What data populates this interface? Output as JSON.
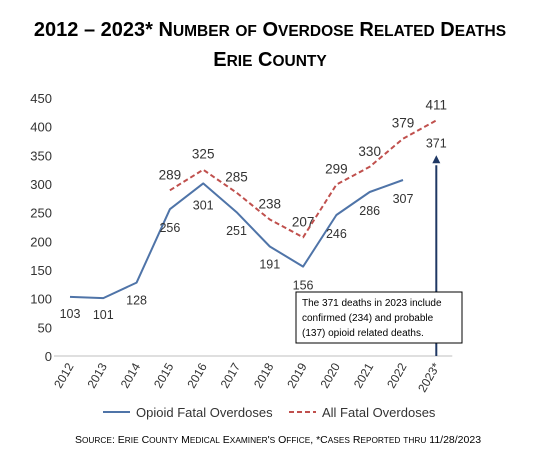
{
  "chart_data": {
    "type": "line",
    "title_line1": "2012 – 2023* Number of Overdose Related Deaths",
    "title_line2": "Erie County",
    "categories": [
      "2012",
      "2013",
      "2014",
      "2015",
      "2016",
      "2017",
      "2018",
      "2019",
      "2020",
      "2021",
      "2022",
      "2023*"
    ],
    "ylim": [
      0,
      450
    ],
    "yticks": [
      0,
      50,
      100,
      150,
      200,
      250,
      300,
      350,
      400,
      450
    ],
    "series": [
      {
        "name": "Opioid Fatal Overdoses",
        "color": "#4f74a8",
        "style": "solid",
        "values": [
          103,
          101,
          128,
          256,
          301,
          251,
          191,
          156,
          246,
          286,
          307,
          null
        ],
        "labels": [
          "103",
          "101",
          "128",
          "256",
          "301",
          "251",
          "191",
          "156",
          "246",
          "286",
          "307",
          "371"
        ]
      },
      {
        "name": "All Fatal Overdoses",
        "color": "#c0504d",
        "style": "dashed",
        "values": [
          null,
          null,
          null,
          289,
          325,
          285,
          238,
          207,
          299,
          330,
          379,
          411
        ],
        "labels": [
          "",
          "",
          "",
          "289",
          "325",
          "285",
          "238",
          "207",
          "299",
          "330",
          "379",
          "411"
        ]
      }
    ],
    "annotation": {
      "text": "The 371 deaths in 2023 include confirmed (234) and probable (137) opioid related deaths.",
      "lines": [
        "The 371 deaths in 2023 include",
        "confirmed (234) and probable",
        "(137) opioid related deaths."
      ],
      "arrow_value": 371,
      "arrow_category": "2023*",
      "arrow_color": "#1f3864"
    },
    "legend_position": "bottom",
    "source": "Source: Erie County Medical Examiner's Office, *Cases Reported thru 11/28/2023"
  }
}
